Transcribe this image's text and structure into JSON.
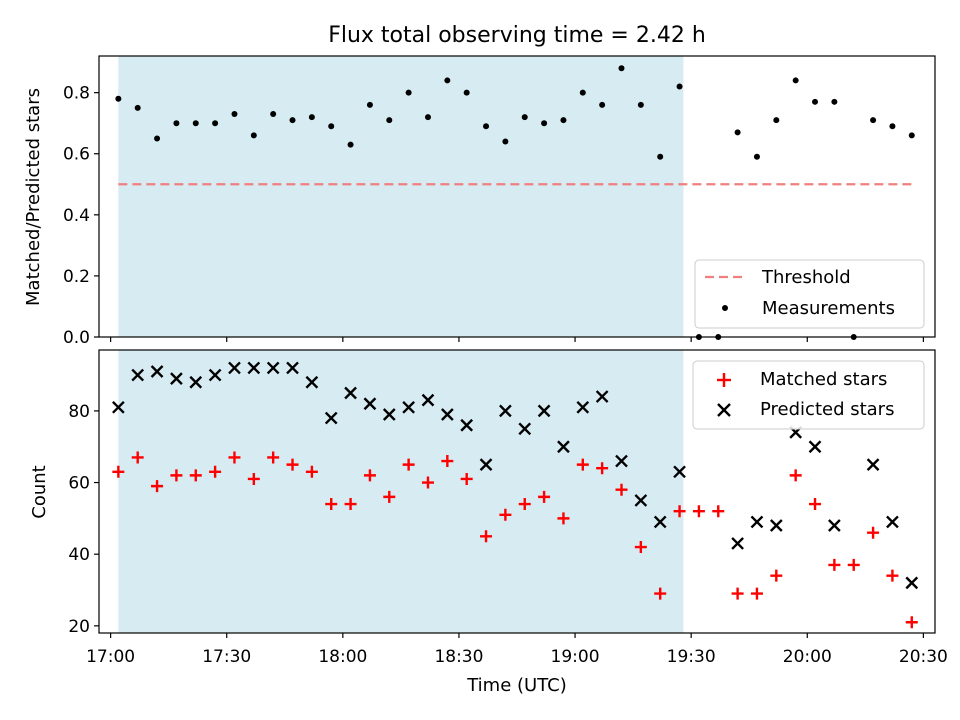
{
  "chart_data": [
    {
      "type": "scatter",
      "title": "Flux total observing time = 2.42 h",
      "ylabel": "Matched/Predicted stars",
      "ylim": [
        0,
        0.92
      ],
      "yticks": [
        "0.0",
        "0.2",
        "0.4",
        "0.6",
        "0.8"
      ],
      "ytick_values": [
        0,
        0.2,
        0.4,
        0.6,
        0.8
      ],
      "grid": false,
      "legend_position": "bottom-right",
      "shaded_interval": [
        "17:02",
        "19:28"
      ],
      "shade_color": "#add8e6",
      "threshold": {
        "name": "Threshold",
        "value": 0.5,
        "x_start": "17:02",
        "x_end": "20:28",
        "color": "#f08080"
      },
      "series": [
        {
          "name": "Measurements",
          "color": "#000000",
          "marker": "dot",
          "x": [
            "17:02",
            "17:07",
            "17:12",
            "17:17",
            "17:22",
            "17:27",
            "17:32",
            "17:37",
            "17:42",
            "17:47",
            "17:52",
            "17:57",
            "18:02",
            "18:07",
            "18:12",
            "18:17",
            "18:22",
            "18:27",
            "18:32",
            "18:37",
            "18:42",
            "18:47",
            "18:52",
            "18:57",
            "19:02",
            "19:07",
            "19:12",
            "19:17",
            "19:22",
            "19:27",
            "19:32",
            "19:37",
            "19:42",
            "19:47",
            "19:52",
            "19:57",
            "20:02",
            "20:07",
            "20:12",
            "20:17",
            "20:22",
            "20:27"
          ],
          "y": [
            0.78,
            0.75,
            0.65,
            0.7,
            0.7,
            0.7,
            0.73,
            0.66,
            0.73,
            0.71,
            0.72,
            0.69,
            0.63,
            0.76,
            0.71,
            0.8,
            0.72,
            0.84,
            0.8,
            0.69,
            0.64,
            0.72,
            0.7,
            0.71,
            0.8,
            0.76,
            0.88,
            0.76,
            0.59,
            0.82,
            0.0,
            0.0,
            0.67,
            0.59,
            0.71,
            0.84,
            0.77,
            0.77,
            0.0,
            0.71,
            0.69,
            0.66
          ]
        }
      ]
    },
    {
      "type": "scatter",
      "xlabel": "Time (UTC)",
      "ylabel": "Count",
      "ylim": [
        18,
        97
      ],
      "yticks": [
        "20",
        "40",
        "60",
        "80"
      ],
      "ytick_values": [
        20,
        40,
        60,
        80
      ],
      "xlim": [
        "16:57",
        "20:33"
      ],
      "xticks": [
        "17:00",
        "17:30",
        "18:00",
        "18:30",
        "19:00",
        "19:30",
        "20:00",
        "20:30"
      ],
      "grid": false,
      "legend_position": "top-right",
      "shaded_interval": [
        "17:02",
        "19:28"
      ],
      "shade_color": "#add8e6",
      "series": [
        {
          "name": "Matched stars",
          "color": "#ff0000",
          "marker": "plus",
          "x": [
            "17:02",
            "17:07",
            "17:12",
            "17:17",
            "17:22",
            "17:27",
            "17:32",
            "17:37",
            "17:42",
            "17:47",
            "17:52",
            "17:57",
            "18:02",
            "18:07",
            "18:12",
            "18:17",
            "18:22",
            "18:27",
            "18:32",
            "18:37",
            "18:42",
            "18:47",
            "18:52",
            "18:57",
            "19:02",
            "19:07",
            "19:12",
            "19:17",
            "19:22",
            "19:27",
            "19:32",
            "19:37",
            "19:42",
            "19:47",
            "19:52",
            "19:57",
            "20:02",
            "20:07",
            "20:12",
            "20:17",
            "20:22",
            "20:27"
          ],
          "y": [
            63,
            67,
            59,
            62,
            62,
            63,
            67,
            61,
            67,
            65,
            63,
            54,
            54,
            62,
            56,
            65,
            60,
            66,
            61,
            45,
            51,
            54,
            56,
            50,
            65,
            64,
            58,
            42,
            29,
            52,
            52,
            52,
            29,
            29,
            34,
            62,
            54,
            37,
            37,
            46,
            34,
            21
          ]
        },
        {
          "name": "Predicted stars",
          "color": "#000000",
          "marker": "x",
          "x": [
            "17:02",
            "17:07",
            "17:12",
            "17:17",
            "17:22",
            "17:27",
            "17:32",
            "17:37",
            "17:42",
            "17:47",
            "17:52",
            "17:57",
            "18:02",
            "18:07",
            "18:12",
            "18:17",
            "18:22",
            "18:27",
            "18:32",
            "18:37",
            "18:42",
            "18:47",
            "18:52",
            "18:57",
            "19:02",
            "19:07",
            "19:12",
            "19:17",
            "19:22",
            "19:27",
            "19:42",
            "19:47",
            "19:52",
            "19:57",
            "20:02",
            "20:07",
            "20:17",
            "20:22",
            "20:27"
          ],
          "y": [
            81,
            90,
            91,
            89,
            88,
            90,
            92,
            92,
            92,
            92,
            88,
            78,
            85,
            82,
            79,
            81,
            83,
            79,
            76,
            65,
            80,
            75,
            80,
            70,
            81,
            84,
            66,
            55,
            49,
            63,
            43,
            49,
            48,
            74,
            70,
            48,
            65,
            49,
            32
          ]
        }
      ]
    }
  ]
}
